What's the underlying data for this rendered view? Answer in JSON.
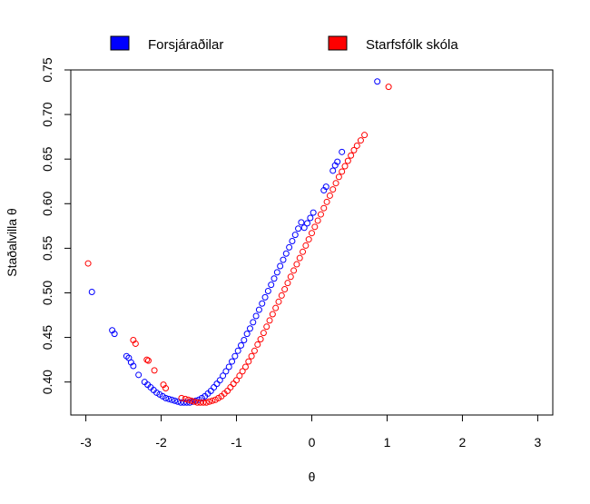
{
  "chart_data": {
    "type": "scatter",
    "xlabel": "θ",
    "ylabel": "Staðalvilla θ",
    "xlim": [
      -3.2,
      3.2
    ],
    "ylim": [
      0.363,
      0.75
    ],
    "xticks": [
      "-3",
      "-2",
      "-1",
      "0",
      "1",
      "2",
      "3"
    ],
    "xtick_values": [
      -3,
      -2,
      -1,
      0,
      1,
      2,
      3
    ],
    "yticks": [
      "0.40",
      "0.45",
      "0.50",
      "0.55",
      "0.60",
      "0.65",
      "0.70",
      "0.75"
    ],
    "ytick_values": [
      0.4,
      0.45,
      0.5,
      0.55,
      0.6,
      0.65,
      0.7,
      0.75
    ],
    "grid": false,
    "legend_position": "top",
    "series": [
      {
        "name": "Forsjáraðilar",
        "color": "#0000FF",
        "x": [
          -2.92,
          -2.65,
          -2.62,
          -2.46,
          -2.43,
          -2.4,
          -2.37,
          -2.3,
          -2.22,
          -2.18,
          -2.14,
          -2.1,
          -2.06,
          -2.02,
          -1.98,
          -1.94,
          -1.9,
          -1.86,
          -1.82,
          -1.78,
          -1.74,
          -1.7,
          -1.66,
          -1.62,
          -1.58,
          -1.54,
          -1.5,
          -1.46,
          -1.42,
          -1.38,
          -1.34,
          -1.3,
          -1.26,
          -1.22,
          -1.18,
          -1.14,
          -1.1,
          -1.06,
          -1.02,
          -0.98,
          -0.94,
          -0.9,
          -0.86,
          -0.82,
          -0.78,
          -0.74,
          -0.7,
          -0.66,
          -0.62,
          -0.58,
          -0.54,
          -0.5,
          -0.46,
          -0.42,
          -0.38,
          -0.34,
          -0.3,
          -0.26,
          -0.22,
          -0.18,
          -0.14,
          -0.1,
          -0.06,
          -0.02,
          0.02,
          0.16,
          0.19,
          0.28,
          0.31,
          0.34,
          0.4,
          0.87
        ],
        "y": [
          0.501,
          0.458,
          0.454,
          0.429,
          0.427,
          0.422,
          0.418,
          0.408,
          0.4,
          0.397,
          0.394,
          0.391,
          0.388,
          0.386,
          0.384,
          0.382,
          0.381,
          0.38,
          0.379,
          0.378,
          0.377,
          0.377,
          0.377,
          0.377,
          0.378,
          0.379,
          0.38,
          0.382,
          0.384,
          0.387,
          0.39,
          0.394,
          0.398,
          0.402,
          0.407,
          0.412,
          0.417,
          0.423,
          0.429,
          0.435,
          0.441,
          0.447,
          0.454,
          0.46,
          0.467,
          0.474,
          0.481,
          0.488,
          0.495,
          0.502,
          0.509,
          0.516,
          0.523,
          0.53,
          0.537,
          0.544,
          0.551,
          0.558,
          0.565,
          0.572,
          0.579,
          0.573,
          0.578,
          0.584,
          0.59,
          0.615,
          0.619,
          0.637,
          0.643,
          0.647,
          0.658,
          0.737
        ]
      },
      {
        "name": "Starfsfólk skóla",
        "color": "#FF0000",
        "x": [
          -2.97,
          -2.37,
          -2.34,
          -2.19,
          -2.17,
          -2.09,
          -1.97,
          -1.94,
          -1.73,
          -1.68,
          -1.64,
          -1.6,
          -1.56,
          -1.52,
          -1.48,
          -1.44,
          -1.4,
          -1.36,
          -1.32,
          -1.28,
          -1.24,
          -1.2,
          -1.16,
          -1.12,
          -1.08,
          -1.04,
          -1.0,
          -0.96,
          -0.92,
          -0.88,
          -0.84,
          -0.8,
          -0.76,
          -0.72,
          -0.68,
          -0.64,
          -0.6,
          -0.56,
          -0.52,
          -0.48,
          -0.44,
          -0.4,
          -0.36,
          -0.32,
          -0.28,
          -0.24,
          -0.2,
          -0.16,
          -0.12,
          -0.08,
          -0.04,
          0.0,
          0.04,
          0.08,
          0.12,
          0.16,
          0.2,
          0.24,
          0.28,
          0.32,
          0.36,
          0.4,
          0.44,
          0.48,
          0.52,
          0.56,
          0.6,
          0.65,
          0.7,
          1.02
        ],
        "y": [
          0.533,
          0.447,
          0.443,
          0.425,
          0.424,
          0.413,
          0.397,
          0.393,
          0.382,
          0.381,
          0.38,
          0.379,
          0.378,
          0.377,
          0.377,
          0.377,
          0.377,
          0.378,
          0.379,
          0.38,
          0.382,
          0.384,
          0.387,
          0.39,
          0.394,
          0.398,
          0.402,
          0.407,
          0.412,
          0.417,
          0.423,
          0.429,
          0.435,
          0.442,
          0.448,
          0.455,
          0.462,
          0.469,
          0.476,
          0.483,
          0.49,
          0.497,
          0.504,
          0.511,
          0.518,
          0.525,
          0.532,
          0.539,
          0.546,
          0.553,
          0.56,
          0.567,
          0.574,
          0.581,
          0.588,
          0.595,
          0.602,
          0.609,
          0.616,
          0.623,
          0.63,
          0.636,
          0.642,
          0.648,
          0.654,
          0.66,
          0.665,
          0.671,
          0.677,
          0.731
        ]
      }
    ]
  }
}
